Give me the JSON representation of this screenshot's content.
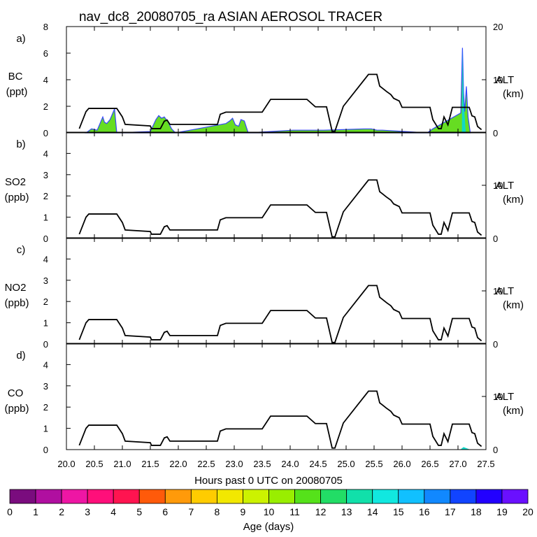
{
  "title": "nav_dc8_20080705_ra ASIAN AEROSOL TRACER",
  "colors": {
    "line": "#000000",
    "age_scale": [
      "#7a0c7e",
      "#b00fa0",
      "#ee16a4",
      "#ff0f7a",
      "#ff1450",
      "#ff5a0a",
      "#ff9a0a",
      "#ffcc00",
      "#f2e800",
      "#ccf200",
      "#99ee00",
      "#55e21a",
      "#22dd66",
      "#11e0aa",
      "#11e8e0",
      "#11c0ff",
      "#1188ff",
      "#1144ff",
      "#2200ff",
      "#6a10ff"
    ],
    "bc_green": "#66dd22",
    "bc_cyan": "#11d8c8",
    "bc_blue": "#3344ff"
  },
  "xaxis": {
    "label": "Hours past 0 UTC on 20080705",
    "min": 20.0,
    "max": 27.5,
    "ticks": [
      "20.0",
      "20.5",
      "21.0",
      "21.5",
      "22.0",
      "22.5",
      "23.0",
      "23.5",
      "24.0",
      "24.5",
      "25.0",
      "25.5",
      "26.0",
      "26.5",
      "27.0",
      "27.5"
    ]
  },
  "colorbar": {
    "label": "Age (days)",
    "ticks": [
      "0",
      "1",
      "2",
      "3",
      "4",
      "5",
      "6",
      "7",
      "8",
      "9",
      "10",
      "11",
      "12",
      "13",
      "14",
      "15",
      "16",
      "17",
      "18",
      "19",
      "20"
    ]
  },
  "panels": [
    {
      "letter": "a)",
      "species": "BC",
      "unit": "(ppt)",
      "ymax": 8,
      "yticks": [
        "0",
        "2",
        "4",
        "6",
        "8"
      ],
      "alt_ticks": [
        "0",
        "10",
        "20"
      ],
      "alt_max": 20,
      "alt_label": "ALT",
      "alt_unit": "(km)"
    },
    {
      "letter": "b)",
      "species": "SO2",
      "unit": "(ppb)",
      "ymax": 5,
      "yticks": [
        "0",
        "1",
        "2",
        "3",
        "4"
      ],
      "alt_ticks": [
        "0",
        "10"
      ],
      "alt_max": 20,
      "alt_label": "ALT",
      "alt_unit": "(km)"
    },
    {
      "letter": "c)",
      "species": "NO2",
      "unit": "(ppb)",
      "ymax": 5,
      "yticks": [
        "0",
        "1",
        "2",
        "3",
        "4"
      ],
      "alt_ticks": [
        "0",
        "10"
      ],
      "alt_max": 20,
      "alt_label": "ALT",
      "alt_unit": "(km)"
    },
    {
      "letter": "d)",
      "species": "CO",
      "unit": "(ppb)",
      "ymax": 5,
      "yticks": [
        "0",
        "1",
        "2",
        "3",
        "4"
      ],
      "alt_ticks": [
        "0",
        "10"
      ],
      "alt_max": 20,
      "alt_label": "ALT",
      "alt_unit": "(km)"
    }
  ],
  "chart_data": {
    "type": "area",
    "title": "nav_dc8_20080705_ra ASIAN AEROSOL TRACER",
    "xlabel": "Hours past 0 UTC on 20080705",
    "xlim": [
      20.0,
      27.5
    ],
    "altitude_km": {
      "x": [
        20.23,
        20.35,
        20.4,
        20.9,
        21.0,
        21.05,
        21.5,
        21.52,
        21.68,
        21.75,
        21.8,
        21.85,
        22.7,
        22.75,
        22.85,
        23.5,
        23.65,
        24.3,
        24.45,
        24.65,
        24.75,
        24.8,
        24.95,
        25.4,
        25.55,
        25.6,
        25.65,
        25.72,
        25.8,
        25.85,
        25.95,
        26.0,
        26.5,
        26.55,
        26.65,
        26.7,
        26.75,
        26.82,
        26.9,
        27.2,
        27.25,
        27.3,
        27.35,
        27.42
      ],
      "y": [
        0.8,
        4.0,
        4.6,
        4.6,
        3.0,
        1.6,
        1.3,
        0.8,
        0.8,
        2.2,
        2.4,
        1.6,
        1.6,
        3.5,
        3.9,
        3.9,
        6.3,
        6.3,
        4.9,
        4.9,
        0.3,
        0.3,
        5.0,
        11.0,
        11.0,
        8.8,
        8.4,
        7.8,
        7.2,
        6.5,
        6.0,
        4.8,
        4.8,
        2.5,
        0.8,
        0.8,
        3.0,
        1.5,
        4.8,
        4.8,
        3.2,
        3.0,
        1.2,
        0.6
      ]
    },
    "bc_ppt": {
      "x": [
        20.35,
        20.45,
        20.55,
        20.65,
        20.68,
        20.72,
        20.78,
        20.82,
        20.86,
        20.9,
        21.5,
        21.6,
        21.65,
        21.7,
        21.75,
        21.82,
        21.88,
        21.95,
        22.85,
        22.92,
        22.97,
        23.02,
        23.08,
        23.12,
        23.18,
        23.25,
        24.05,
        24.35,
        24.6,
        25.35,
        25.45,
        25.55,
        25.65,
        26.45,
        26.55,
        27.05,
        27.08,
        27.1,
        27.12,
        27.15,
        27.18,
        27.22
      ],
      "y": [
        0.0,
        0.3,
        0.2,
        1.2,
        0.8,
        0.7,
        1.0,
        1.4,
        1.8,
        0.0,
        0.1,
        1.0,
        1.3,
        1.1,
        1.2,
        0.8,
        0.3,
        0.0,
        0.7,
        0.9,
        1.1,
        0.6,
        0.5,
        1.0,
        0.9,
        0.0,
        0.2,
        0.2,
        0.2,
        0.3,
        0.3,
        0.2,
        0.2,
        0.0,
        0.3,
        1.5,
        6.4,
        3.0,
        1.6,
        3.5,
        1.2,
        0.0
      ]
    },
    "co_ppb": {
      "x": [
        27.05,
        27.1,
        27.15,
        27.2
      ],
      "y": [
        0.0,
        0.1,
        0.05,
        0.0
      ]
    }
  }
}
